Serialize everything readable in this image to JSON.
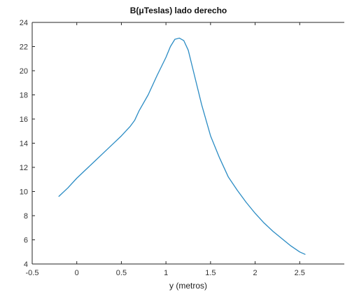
{
  "chart_data": {
    "type": "line",
    "title": "B(μTeslas) lado derecho",
    "xlabel": "y (metros)",
    "ylabel": "",
    "xlim": [
      -0.5,
      3
    ],
    "ylim": [
      4,
      24
    ],
    "xticks": [
      -0.5,
      0,
      0.5,
      1,
      1.5,
      2,
      2.5
    ],
    "xtick_labels": [
      "-0.5",
      "0",
      "0.5",
      "1",
      "1.5",
      "2",
      "2.5"
    ],
    "yticks": [
      4,
      6,
      8,
      10,
      12,
      14,
      16,
      18,
      20,
      22,
      24
    ],
    "ytick_labels": [
      "4",
      "6",
      "8",
      "10",
      "12",
      "14",
      "16",
      "18",
      "20",
      "22",
      "24"
    ],
    "grid": false,
    "series": [
      {
        "color": "#2b8cc4",
        "x": [
          -0.2,
          -0.1,
          0.0,
          0.1,
          0.2,
          0.3,
          0.4,
          0.5,
          0.6,
          0.65,
          0.7,
          0.8,
          0.9,
          1.0,
          1.05,
          1.1,
          1.15,
          1.2,
          1.25,
          1.3,
          1.4,
          1.5,
          1.6,
          1.7,
          1.8,
          1.9,
          2.0,
          2.1,
          2.2,
          2.3,
          2.4,
          2.5,
          2.56
        ],
        "y": [
          9.6,
          10.3,
          11.1,
          11.8,
          12.5,
          13.2,
          13.9,
          14.6,
          15.4,
          15.9,
          16.7,
          18.0,
          19.6,
          21.1,
          22.0,
          22.6,
          22.7,
          22.5,
          21.7,
          20.2,
          17.2,
          14.6,
          12.8,
          11.2,
          10.1,
          9.1,
          8.2,
          7.4,
          6.7,
          6.1,
          5.5,
          5.0,
          4.8
        ]
      }
    ]
  }
}
